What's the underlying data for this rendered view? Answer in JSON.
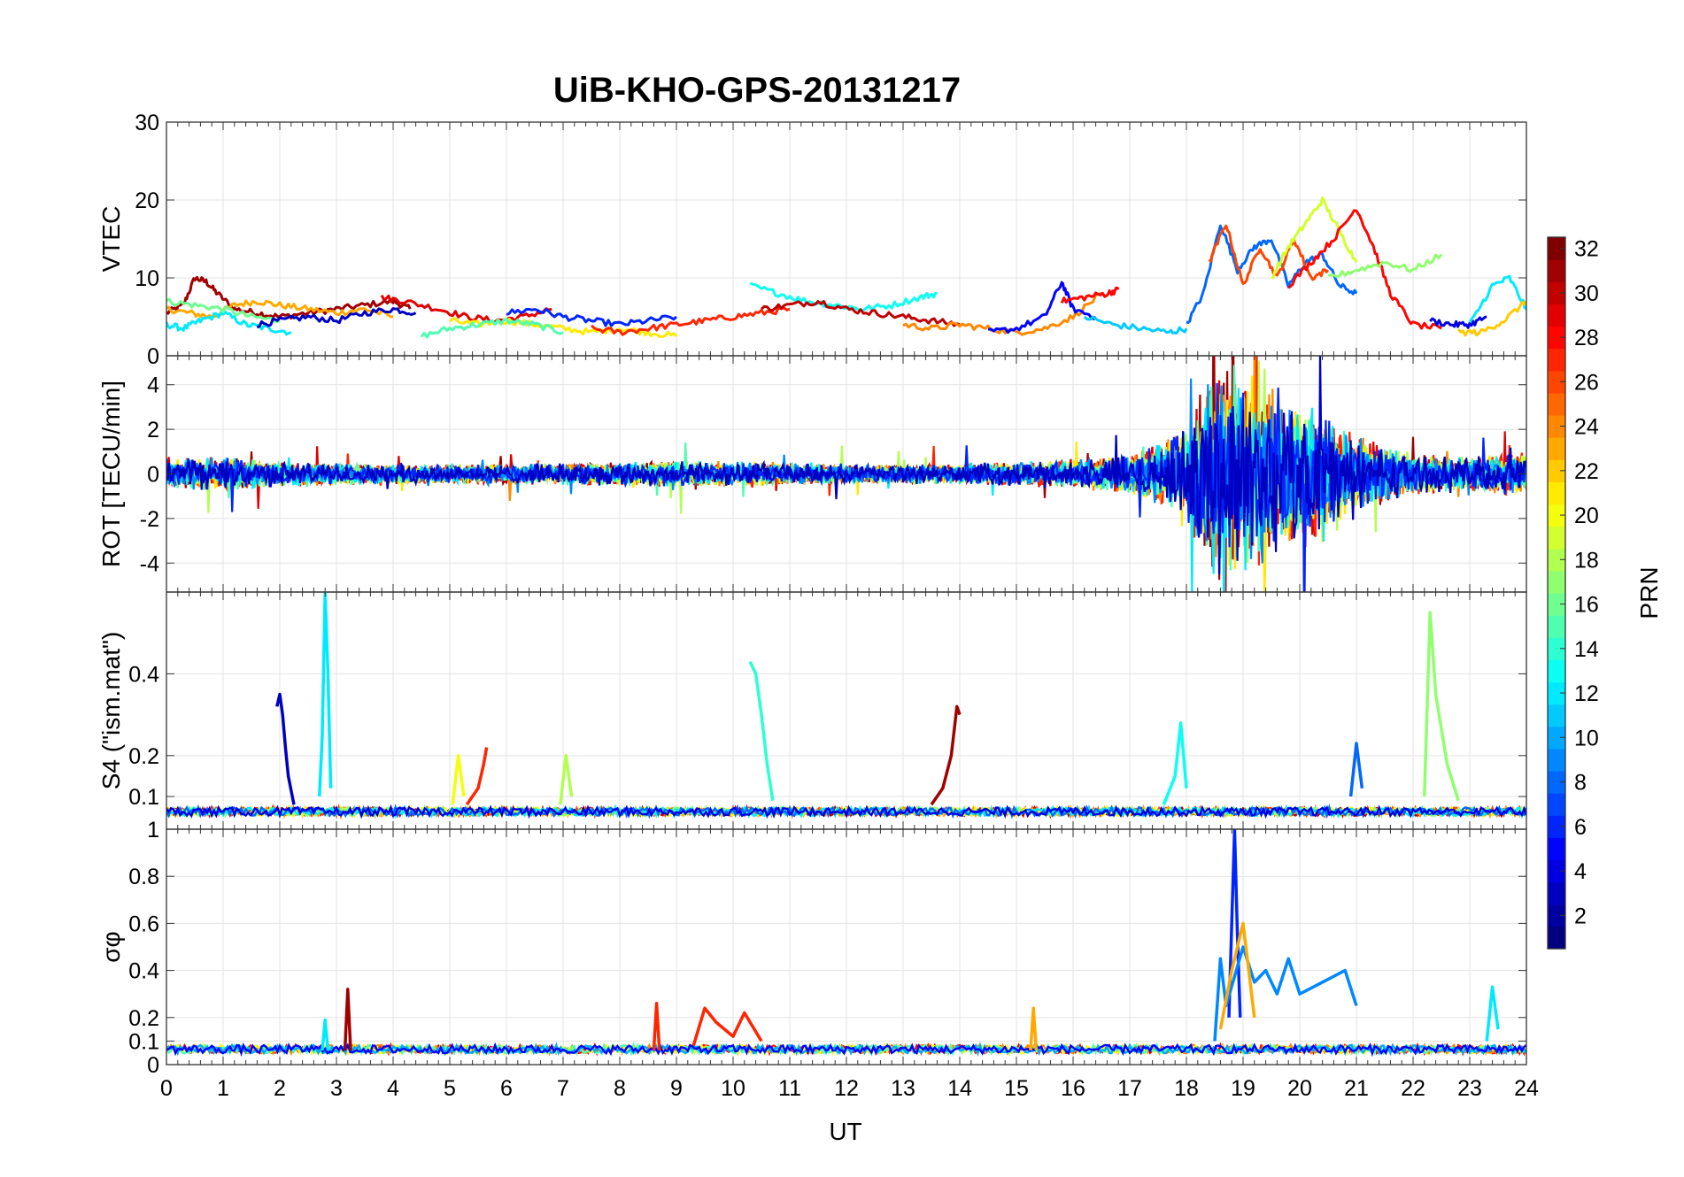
{
  "chart_data": {
    "type": "line",
    "title": "UiB-KHO-GPS-20131217",
    "xlabel": "UT",
    "xlim": [
      0,
      24
    ],
    "x_ticks": [
      0,
      1,
      2,
      3,
      4,
      5,
      6,
      7,
      8,
      9,
      10,
      11,
      12,
      13,
      14,
      15,
      16,
      17,
      18,
      19,
      20,
      21,
      22,
      23,
      24
    ],
    "grid": true,
    "colorbar": {
      "label": "PRN",
      "colormap": "jet",
      "range": [
        1,
        32
      ],
      "ticks": [
        2,
        4,
        6,
        8,
        10,
        12,
        14,
        16,
        18,
        20,
        22,
        24,
        26,
        28,
        30,
        32
      ]
    },
    "panels": [
      {
        "id": "vtec",
        "ylabel": "VTEC",
        "ylim": [
          0,
          30
        ],
        "y_ticks": [
          0,
          10,
          20,
          30
        ],
        "y_tick_labels": [
          "0",
          "10",
          "20",
          "30"
        ],
        "series": [
          {
            "prn": 31,
            "x": [
              0.0,
              0.3,
              0.5,
              0.7,
              0.9,
              1.2,
              1.6,
              2.0,
              2.5,
              3.0,
              3.5,
              4.0,
              4.3
            ],
            "y": [
              5.5,
              6.5,
              10.0,
              9.5,
              8.0,
              6.0,
              5.5,
              5.0,
              5.5,
              6.0,
              6.5,
              7.0,
              6.0
            ]
          },
          {
            "prn": 23,
            "x": [
              0.0,
              0.4,
              0.8,
              1.2,
              1.6,
              2.0,
              2.5,
              3.0,
              3.5,
              4.0
            ],
            "y": [
              6.0,
              5.5,
              5.0,
              6.5,
              7.0,
              6.5,
              6.0,
              5.5,
              6.0,
              5.0
            ]
          },
          {
            "prn": 12,
            "x": [
              0.0,
              0.3,
              0.6,
              1.0,
              1.4,
              1.8,
              2.2
            ],
            "y": [
              4.0,
              3.5,
              4.5,
              5.5,
              4.0,
              3.5,
              3.0
            ]
          },
          {
            "prn": 16,
            "x": [
              0.0,
              0.5,
              1.0,
              1.5,
              2.0
            ],
            "y": [
              7.0,
              6.5,
              6.0,
              5.0,
              4.5
            ]
          },
          {
            "prn": 3,
            "x": [
              1.6,
              2.0,
              2.5,
              3.0,
              3.5,
              4.0,
              4.4
            ],
            "y": [
              4.0,
              4.5,
              5.0,
              4.5,
              5.5,
              6.0,
              5.5
            ]
          },
          {
            "prn": 29,
            "x": [
              3.8,
              4.2,
              4.8,
              5.3,
              5.8,
              6.3,
              6.8
            ],
            "y": [
              7.5,
              7.0,
              6.0,
              5.0,
              4.5,
              5.0,
              6.0
            ]
          },
          {
            "prn": 21,
            "x": [
              5.0,
              5.5,
              6.0,
              6.5,
              7.0,
              7.5,
              8.0,
              8.5,
              9.0
            ],
            "y": [
              4.5,
              4.0,
              4.5,
              4.0,
              3.5,
              3.0,
              3.5,
              3.0,
              2.5
            ]
          },
          {
            "prn": 15,
            "x": [
              4.5,
              5.0,
              5.5,
              6.0,
              6.5,
              7.0
            ],
            "y": [
              2.5,
              3.5,
              4.0,
              4.5,
              4.0,
              3.0
            ]
          },
          {
            "prn": 6,
            "x": [
              6.0,
              6.5,
              7.0,
              7.5,
              8.0,
              8.5,
              9.0
            ],
            "y": [
              5.5,
              6.0,
              5.0,
              4.5,
              4.0,
              4.5,
              5.0
            ]
          },
          {
            "prn": 27,
            "x": [
              7.5,
              8.0,
              8.5,
              9.0,
              9.5,
              10.0,
              10.5,
              11.0
            ],
            "y": [
              3.5,
              3.0,
              3.5,
              4.0,
              4.5,
              5.0,
              5.5,
              6.0
            ]
          },
          {
            "prn": 13,
            "x": [
              10.3,
              10.8,
              11.3,
              11.8,
              12.3,
              12.8,
              13.3,
              13.6
            ],
            "y": [
              9.0,
              8.0,
              7.0,
              6.5,
              6.0,
              6.5,
              7.5,
              8.0
            ]
          },
          {
            "prn": 30,
            "x": [
              10.5,
              11.0,
              11.5,
              12.0,
              12.5,
              13.0,
              13.5,
              14.0
            ],
            "y": [
              6.0,
              6.5,
              7.0,
              6.0,
              5.5,
              5.0,
              4.5,
              4.0
            ]
          },
          {
            "prn": 24,
            "x": [
              13.0,
              13.5,
              14.0,
              14.5,
              15.0,
              15.5,
              16.0,
              16.5
            ],
            "y": [
              4.0,
              3.5,
              4.0,
              3.5,
              3.0,
              3.5,
              5.0,
              8.0
            ]
          },
          {
            "prn": 5,
            "x": [
              14.5,
              15.0,
              15.5,
              15.8,
              16.0,
              16.4
            ],
            "y": [
              3.0,
              3.5,
              5.0,
              9.5,
              6.0,
              5.0
            ]
          },
          {
            "prn": 28,
            "x": [
              15.8,
              16.2,
              16.6,
              16.8
            ],
            "y": [
              7.0,
              7.5,
              8.0,
              8.5
            ]
          },
          {
            "prn": 11,
            "x": [
              16.2,
              16.7,
              17.2,
              17.7,
              18.0
            ],
            "y": [
              5.0,
              4.0,
              3.5,
              3.0,
              3.5
            ]
          },
          {
            "prn": 8,
            "x": [
              18.0,
              18.3,
              18.6,
              18.9,
              19.2,
              19.5,
              19.8,
              20.1,
              20.4,
              20.7,
              21.0
            ],
            "y": [
              4.0,
              8.0,
              17.0,
              11.0,
              14.0,
              15.0,
              9.0,
              12.0,
              13.0,
              9.0,
              8.0
            ]
          },
          {
            "prn": 26,
            "x": [
              18.4,
              18.7,
              19.0,
              19.3,
              19.6,
              19.9,
              20.2,
              20.5
            ],
            "y": [
              12.0,
              17.0,
              9.0,
              14.0,
              10.0,
              15.0,
              10.0,
              11.0
            ]
          },
          {
            "prn": 19,
            "x": [
              19.5,
              19.8,
              20.1,
              20.4,
              20.7,
              21.0
            ],
            "y": [
              10.0,
              14.0,
              17.0,
              20.0,
              16.0,
              12.0
            ]
          },
          {
            "prn": 28,
            "x": [
              19.8,
              20.2,
              20.6,
              21.0,
              21.3,
              21.6,
              22.0,
              22.5
            ],
            "y": [
              9.0,
              12.0,
              15.0,
              19.0,
              14.0,
              8.0,
              4.0,
              3.5
            ]
          },
          {
            "prn": 17,
            "x": [
              20.5,
              21.0,
              21.5,
              22.0,
              22.5
            ],
            "y": [
              10.0,
              11.0,
              12.0,
              11.0,
              13.0
            ]
          },
          {
            "prn": 4,
            "x": [
              22.3,
              22.7,
              23.0,
              23.3
            ],
            "y": [
              4.5,
              4.0,
              4.0,
              5.0
            ]
          },
          {
            "prn": 12,
            "x": [
              23.0,
              23.4,
              23.7,
              24.0
            ],
            "y": [
              4.0,
              9.0,
              10.0,
              6.0
            ]
          },
          {
            "prn": 22,
            "x": [
              22.8,
              23.2,
              23.6,
              24.0
            ],
            "y": [
              3.0,
              3.0,
              4.5,
              7.0
            ]
          }
        ]
      },
      {
        "id": "rot",
        "ylabel": "ROT [TECU/min]",
        "ylim": [
          -5.3,
          5.3
        ],
        "y_ticks": [
          -4,
          -2,
          0,
          2,
          4
        ],
        "y_tick_labels": [
          "-4",
          "-2",
          "0",
          "2",
          "4"
        ],
        "noise_envelope": [
          {
            "x": 0,
            "amp": 0.6
          },
          {
            "x": 1,
            "amp": 0.7
          },
          {
            "x": 2,
            "amp": 0.5
          },
          {
            "x": 4,
            "amp": 0.4
          },
          {
            "x": 6,
            "amp": 0.4
          },
          {
            "x": 8,
            "amp": 0.5
          },
          {
            "x": 10,
            "amp": 0.5
          },
          {
            "x": 12,
            "amp": 0.4
          },
          {
            "x": 14,
            "amp": 0.4
          },
          {
            "x": 15,
            "amp": 0.5
          },
          {
            "x": 16,
            "amp": 0.6
          },
          {
            "x": 17,
            "amp": 0.8
          },
          {
            "x": 18,
            "amp": 1.8
          },
          {
            "x": 18.5,
            "amp": 4.5
          },
          {
            "x": 19,
            "amp": 4.0
          },
          {
            "x": 19.5,
            "amp": 3.5
          },
          {
            "x": 20,
            "amp": 3.0
          },
          {
            "x": 20.5,
            "amp": 2.5
          },
          {
            "x": 21,
            "amp": 1.5
          },
          {
            "x": 22,
            "amp": 0.8
          },
          {
            "x": 23,
            "amp": 0.7
          },
          {
            "x": 24,
            "amp": 0.9
          }
        ],
        "series_prn": [
          31,
          29,
          27,
          24,
          21,
          18,
          15,
          12,
          9,
          6,
          3
        ]
      },
      {
        "id": "s4",
        "ylabel": "S4 (\"ism.mat\")",
        "ylim": [
          0.02,
          0.6
        ],
        "y_ticks": [
          0.1,
          0.2,
          0.4
        ],
        "y_tick_labels": [
          "0.1",
          "0.2",
          "0.4"
        ],
        "baseline": 0.06,
        "spikes": [
          {
            "prn": 3,
            "x": [
              1.95,
              2.0,
              2.05,
              2.1,
              2.15,
              2.25
            ],
            "y": [
              0.32,
              0.35,
              0.3,
              0.22,
              0.15,
              0.08
            ]
          },
          {
            "prn": 12,
            "x": [
              2.7,
              2.75,
              2.8,
              2.85,
              2.9
            ],
            "y": [
              0.1,
              0.25,
              0.6,
              0.4,
              0.12
            ]
          },
          {
            "prn": 14,
            "x": [
              10.3,
              10.4,
              10.5,
              10.6,
              10.7
            ],
            "y": [
              0.43,
              0.4,
              0.3,
              0.18,
              0.09
            ]
          },
          {
            "prn": 31,
            "x": [
              13.5,
              13.7,
              13.85,
              13.95,
              14.0
            ],
            "y": [
              0.08,
              0.12,
              0.2,
              0.32,
              0.3
            ]
          },
          {
            "prn": 27,
            "x": [
              5.3,
              5.5,
              5.6,
              5.65
            ],
            "y": [
              0.08,
              0.12,
              0.18,
              0.22
            ]
          },
          {
            "prn": 20,
            "x": [
              5.05,
              5.15,
              5.25
            ],
            "y": [
              0.08,
              0.2,
              0.1
            ]
          },
          {
            "prn": 18,
            "x": [
              6.95,
              7.05,
              7.15
            ],
            "y": [
              0.08,
              0.2,
              0.1
            ]
          },
          {
            "prn": 13,
            "x": [
              17.6,
              17.8,
              17.9,
              18.0
            ],
            "y": [
              0.08,
              0.15,
              0.28,
              0.12
            ]
          },
          {
            "prn": 8,
            "x": [
              20.9,
              21.0,
              21.1
            ],
            "y": [
              0.1,
              0.23,
              0.12
            ]
          },
          {
            "prn": 17,
            "x": [
              22.2,
              22.3,
              22.4,
              22.6,
              22.8
            ],
            "y": [
              0.1,
              0.55,
              0.35,
              0.18,
              0.09
            ]
          }
        ],
        "series_prn": [
          30,
          26,
          23,
          20,
          17,
          12,
          8,
          4
        ]
      },
      {
        "id": "sigma_phi",
        "ylabel": "σφ",
        "ylim": [
          0,
          1
        ],
        "y_ticks": [
          0,
          0.1,
          0.2,
          0.4,
          0.6,
          0.8,
          1
        ],
        "y_tick_labels": [
          "0",
          "0.1",
          "0.2",
          "0.4",
          "0.6",
          "0.8",
          "1"
        ],
        "baseline": 0.06,
        "spikes": [
          {
            "prn": 31,
            "x": [
              3.15,
              3.2,
              3.25
            ],
            "y": [
              0.06,
              0.32,
              0.06
            ]
          },
          {
            "prn": 12,
            "x": [
              2.75,
              2.8,
              2.85
            ],
            "y": [
              0.06,
              0.19,
              0.06
            ]
          },
          {
            "prn": 27,
            "x": [
              8.6,
              8.65,
              8.7
            ],
            "y": [
              0.06,
              0.26,
              0.06
            ]
          },
          {
            "prn": 27,
            "x": [
              9.3,
              9.5,
              9.7,
              10.0,
              10.2,
              10.5
            ],
            "y": [
              0.08,
              0.24,
              0.18,
              0.12,
              0.22,
              0.1
            ]
          },
          {
            "prn": 23,
            "x": [
              15.25,
              15.3,
              15.35
            ],
            "y": [
              0.06,
              0.24,
              0.06
            ]
          },
          {
            "prn": 6,
            "x": [
              18.75,
              18.8,
              18.85,
              18.9,
              18.95
            ],
            "y": [
              0.2,
              0.6,
              1.0,
              0.55,
              0.2
            ]
          },
          {
            "prn": 9,
            "x": [
              18.5,
              18.6,
              18.7,
              19.0,
              19.2,
              19.4,
              19.6,
              19.8,
              20.0,
              20.4,
              20.8,
              21.0
            ],
            "y": [
              0.1,
              0.45,
              0.25,
              0.5,
              0.35,
              0.4,
              0.3,
              0.45,
              0.3,
              0.35,
              0.4,
              0.25
            ]
          },
          {
            "prn": 23,
            "x": [
              18.6,
              18.8,
              19.0,
              19.2
            ],
            "y": [
              0.15,
              0.4,
              0.6,
              0.2
            ]
          },
          {
            "prn": 12,
            "x": [
              23.3,
              23.4,
              23.5
            ],
            "y": [
              0.1,
              0.33,
              0.15
            ]
          }
        ],
        "series_prn": [
          28,
          24,
          20,
          15,
          10,
          5
        ]
      }
    ]
  }
}
